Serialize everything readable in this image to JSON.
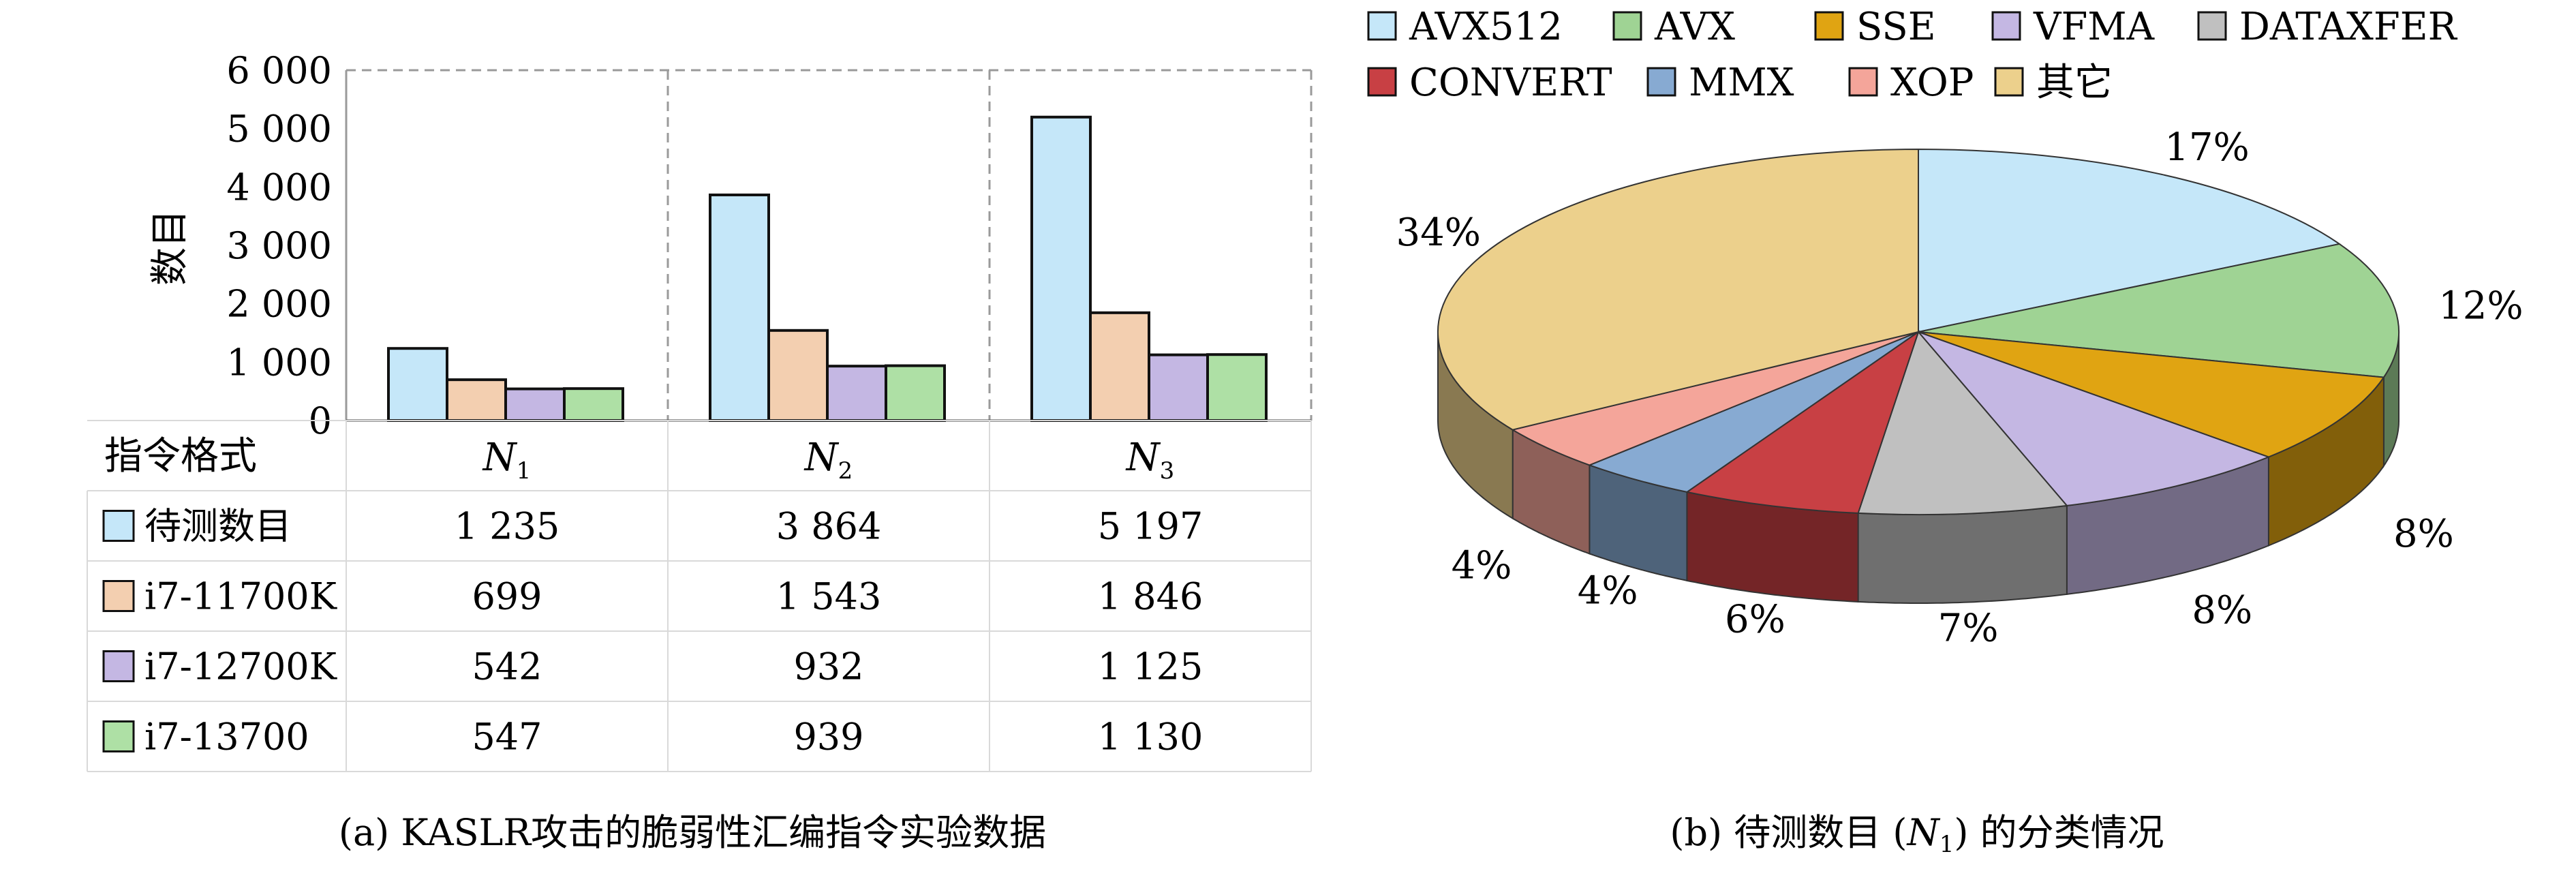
{
  "chart_data": [
    {
      "type": "bar",
      "ylabel": "数目",
      "ylim": [
        0,
        6000
      ],
      "yticks": [
        "0",
        "1 000",
        "2 000",
        "3 000",
        "4 000",
        "5 000",
        "6 000"
      ],
      "table_header": "指令格式",
      "groups": [
        {
          "name": "N",
          "sub": "1"
        },
        {
          "name": "N",
          "sub": "2"
        },
        {
          "name": "N",
          "sub": "3"
        }
      ],
      "series": [
        {
          "name": "待测数目",
          "color": "#c5e7f9",
          "values": [
            1235,
            3864,
            5197
          ],
          "labels": [
            "1 235",
            "3 864",
            "5 197"
          ]
        },
        {
          "name": "i7-11700K",
          "color": "#f3cfb0",
          "values": [
            699,
            1543,
            1846
          ],
          "labels": [
            "699",
            "1 543",
            "1 846"
          ]
        },
        {
          "name": "i7-12700K",
          "color": "#c4b7e3",
          "values": [
            542,
            932,
            1125
          ],
          "labels": [
            "542",
            "932",
            "1 125"
          ]
        },
        {
          "name": "i7-13700",
          "color": "#aee0a5",
          "values": [
            547,
            939,
            1130
          ],
          "labels": [
            "547",
            "939",
            "1 130"
          ]
        }
      ],
      "caption": "(a) KASLR攻击的脆弱性汇编指令实验数据",
      "grid": false
    },
    {
      "type": "pie",
      "style": "3d",
      "legend": "top",
      "slices": [
        {
          "name": "AVX512",
          "value": 17,
          "label": "17%",
          "color": "#c5e7f9"
        },
        {
          "name": "AVX",
          "value": 12,
          "label": "12%",
          "color": "#9fd394"
        },
        {
          "name": "SSE",
          "value": 8,
          "label": "8%",
          "color": "#e0a412"
        },
        {
          "name": "VFMA",
          "value": 8,
          "label": "8%",
          "color": "#c4b7e3"
        },
        {
          "name": "DATAXFER",
          "value": 7,
          "label": "7%",
          "color": "#c0c0c0"
        },
        {
          "name": "CONVERT",
          "value": 6,
          "label": "6%",
          "color": "#c84044"
        },
        {
          "name": "MMX",
          "value": 4,
          "label": "4%",
          "color": "#87aad2"
        },
        {
          "name": "XOP",
          "value": 4,
          "label": "4%",
          "color": "#f4a59a"
        },
        {
          "name": "其它",
          "value": 34,
          "label": "34%",
          "color": "#ecd08c"
        }
      ],
      "caption_pre": "(b) 待测数目 (",
      "caption_var": "N",
      "caption_sub": "1",
      "caption_post": ") 的分类情况"
    }
  ]
}
